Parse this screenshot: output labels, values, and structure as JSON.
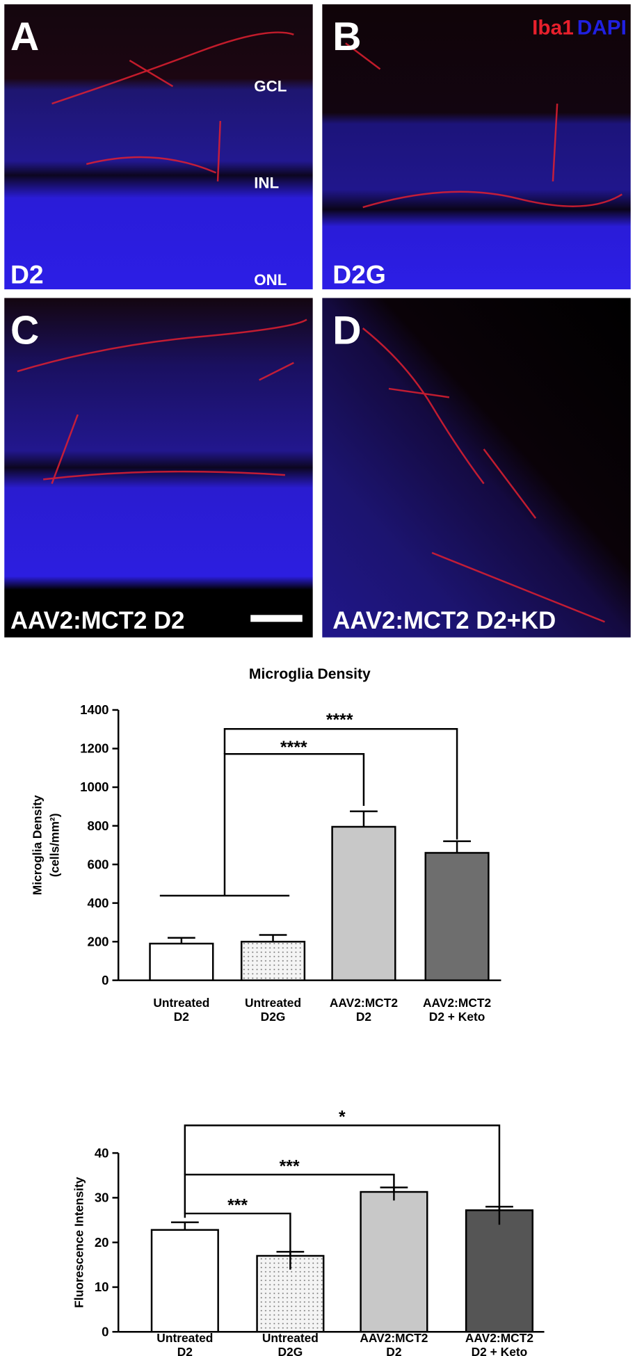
{
  "panels": [
    {
      "letter": "A",
      "label": "D2",
      "layers": [
        "GCL",
        "INL",
        "ONL"
      ]
    },
    {
      "letter": "B",
      "label": "D2G",
      "legend": [
        "Iba1",
        "DAPI"
      ]
    },
    {
      "letter": "C",
      "label": "AAV2:MCT2 D2"
    },
    {
      "letter": "D",
      "label": "AAV2:MCT2 D2+KD"
    }
  ],
  "chart_data": [
    {
      "type": "bar",
      "title": "Microglia Density",
      "y_label": [
        "Microglia Density",
        "(cells/mm²)"
      ],
      "categories": [
        [
          "Untreated",
          "D2"
        ],
        [
          "Untreated",
          "D2G"
        ],
        [
          "AAV2:MCT2",
          "D2"
        ],
        [
          "AAV2:MCT2",
          "D2 + Keto"
        ]
      ],
      "values": [
        190,
        200,
        795,
        660
      ],
      "errors": [
        30,
        35,
        80,
        60
      ],
      "colors": [
        "#ffffff",
        "#eeeeee",
        "#c8c8c8",
        "#6e6e6e"
      ],
      "stippled": [
        false,
        true,
        false,
        false
      ],
      "ylim": [
        0,
        1400
      ],
      "yticks": [
        0,
        200,
        400,
        600,
        800,
        1000,
        1200,
        1400
      ],
      "annotations": [
        "****",
        "****"
      ]
    },
    {
      "type": "bar",
      "y_label": [
        "Fluorescence  Intensity"
      ],
      "categories": [
        [
          "Untreated",
          "D2"
        ],
        [
          "Untreated",
          "D2G"
        ],
        [
          "AAV2:MCT2",
          "D2"
        ],
        [
          "AAV2:MCT2",
          "D2 + Keto"
        ]
      ],
      "values": [
        22.8,
        17,
        31.3,
        27.2
      ],
      "errors": [
        1.7,
        0.9,
        1.0,
        0.8
      ],
      "colors": [
        "#ffffff",
        "#eeeeee",
        "#c8c8c8",
        "#555555"
      ],
      "stippled": [
        false,
        true,
        false,
        false
      ],
      "ylim": [
        0,
        40
      ],
      "yticks": [
        0,
        10,
        20,
        30,
        40
      ],
      "annotations": [
        "***",
        "***",
        "*"
      ]
    }
  ]
}
